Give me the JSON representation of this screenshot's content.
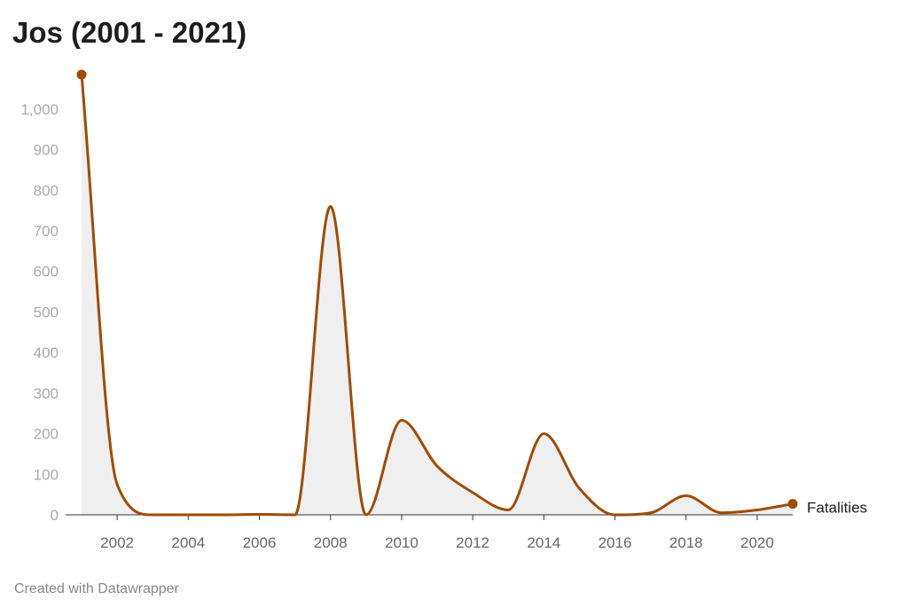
{
  "chart_data": {
    "type": "line",
    "title": "Jos (2001 - 2021)",
    "series_name": "Fatalities",
    "x": [
      2001,
      2002,
      2003,
      2004,
      2005,
      2006,
      2007,
      2008,
      2009,
      2010,
      2011,
      2012,
      2013,
      2014,
      2015,
      2016,
      2017,
      2018,
      2019,
      2020,
      2021
    ],
    "values": [
      1085,
      75,
      0,
      0,
      0,
      1,
      0,
      760,
      0,
      233,
      120,
      55,
      12,
      200,
      65,
      0,
      5,
      47,
      5,
      12,
      27
    ],
    "ylim": [
      0,
      1085
    ],
    "yticks": [
      0,
      100,
      200,
      300,
      400,
      500,
      600,
      700,
      800,
      900,
      1000
    ],
    "ytick_labels": [
      "0",
      "100",
      "200",
      "300",
      "400",
      "500",
      "600",
      "700",
      "800",
      "900",
      "1,000"
    ],
    "xticks": [
      2002,
      2004,
      2006,
      2008,
      2010,
      2012,
      2014,
      2016,
      2018,
      2020
    ],
    "xtick_labels": [
      "2002",
      "2004",
      "2006",
      "2008",
      "2010",
      "2012",
      "2014",
      "2016",
      "2018",
      "2020"
    ],
    "line_color": "#a04b00",
    "area_color": "#efefef",
    "grid": false
  },
  "footer": "Created with Datawrapper"
}
